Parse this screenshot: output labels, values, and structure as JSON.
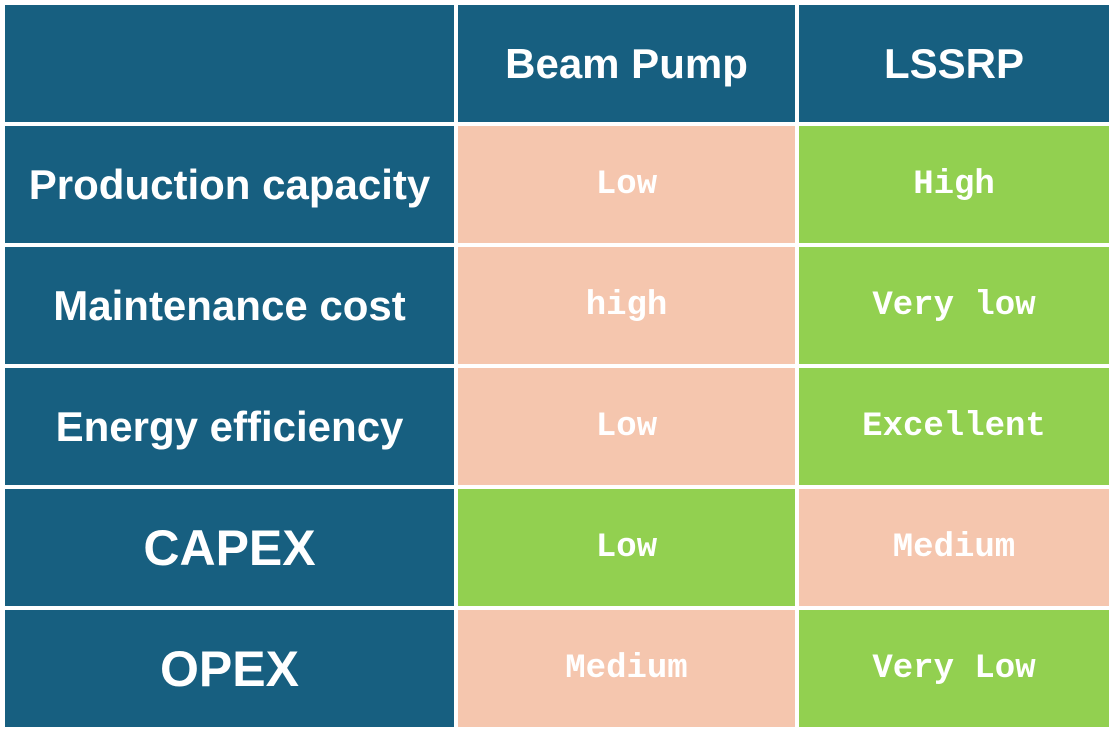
{
  "table": {
    "headers": [
      "",
      "Beam Pump",
      "LSSRP"
    ],
    "rows": [
      {
        "label": "Production capacity",
        "beam_pump": "Low",
        "lssrp": "High",
        "beam_pump_color": "#f5c6ae",
        "lssrp_color": "#92d050"
      },
      {
        "label": "Maintenance cost",
        "beam_pump": "high",
        "lssrp": "Very low",
        "beam_pump_color": "#f5c6ae",
        "lssrp_color": "#92d050"
      },
      {
        "label": "Energy efficiency",
        "beam_pump": "Low",
        "lssrp": "Excellent",
        "beam_pump_color": "#f5c6ae",
        "lssrp_color": "#92d050"
      },
      {
        "label": "CAPEX",
        "beam_pump": "Low",
        "lssrp": "Medium",
        "beam_pump_color": "#92d050",
        "lssrp_color": "#f5c6ae"
      },
      {
        "label": "OPEX",
        "beam_pump": "Medium",
        "lssrp": "Very Low",
        "beam_pump_color": "#f5c6ae",
        "lssrp_color": "#92d050"
      }
    ]
  },
  "colors": {
    "header_bg": "#175f80",
    "favorable": "#92d050",
    "unfavorable": "#f5c6ae",
    "text": "#ffffff"
  }
}
